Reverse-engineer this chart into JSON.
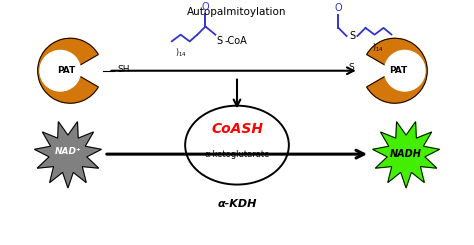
{
  "background_color": "#ffffff",
  "autopalmitoylation_label": "Autopalmitoylation",
  "coash_label": "CoASH",
  "alpha_ketoglutarate_label": "α-ketoglutarate",
  "alpha_kdh_label": "α-KDH",
  "nad_label": "NAD⁺",
  "nadh_label": "NADH",
  "pat_label": "PAT",
  "sh_label": "SH",
  "s_label": "S",
  "pat_color": "#d4770a",
  "nad_color": "#808080",
  "nadh_color": "#44ee00",
  "coash_color": "#ff0000",
  "chem_blue": "#3333cc",
  "chem_black": "#000000",
  "arrow_lw": 1.5,
  "arrow_lw_thick": 2.2
}
